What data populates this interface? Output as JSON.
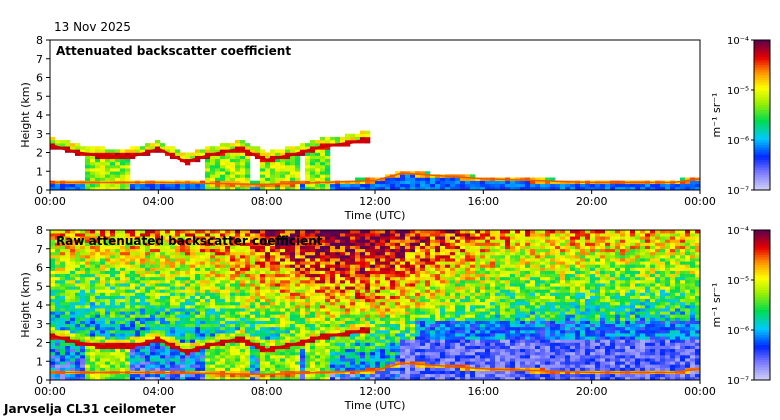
{
  "date": "13 Nov 2025",
  "station": "Jarvselja CL31 ceilometer",
  "chart_data": [
    {
      "type": "heatmap",
      "title": "Attenuated backscatter coefficient",
      "xlabel": "Time (UTC)",
      "ylabel": "Height (km)",
      "x_ticks": [
        "00:00",
        "04:00",
        "08:00",
        "12:00",
        "16:00",
        "20:00",
        "00:00"
      ],
      "xlim_hours": [
        0,
        24
      ],
      "ylim": [
        0,
        8
      ],
      "y_ticks": [
        0,
        1,
        2,
        3,
        4,
        5,
        6,
        7,
        8
      ],
      "colorbar": {
        "label": "m⁻¹ sr⁻¹",
        "scale": "log",
        "range": [
          1e-07,
          0.0001
        ],
        "ticks": [
          "10⁻⁴",
          "10⁻⁵",
          "10⁻⁶",
          "10⁻⁷"
        ]
      },
      "cloud_base_km": [
        {
          "hour": 0.0,
          "height": 2.4
        },
        {
          "hour": 1.0,
          "height": 2.0
        },
        {
          "hour": 2.0,
          "height": 1.8
        },
        {
          "hour": 3.0,
          "height": 1.8
        },
        {
          "hour": 3.6,
          "height": 2.0
        },
        {
          "hour": 4.0,
          "height": 2.2
        },
        {
          "hour": 5.0,
          "height": 1.5
        },
        {
          "hour": 6.0,
          "height": 1.9
        },
        {
          "hour": 7.0,
          "height": 2.2
        },
        {
          "hour": 8.0,
          "height": 1.6
        },
        {
          "hour": 9.0,
          "height": 1.9
        },
        {
          "hour": 10.0,
          "height": 2.3
        },
        {
          "hour": 11.0,
          "height": 2.5
        },
        {
          "hour": 11.8,
          "height": 2.7
        }
      ],
      "boundary_layer_km": [
        {
          "hour": 0.0,
          "height": 0.4
        },
        {
          "hour": 4.0,
          "height": 0.4
        },
        {
          "hour": 8.0,
          "height": 0.3
        },
        {
          "hour": 12.0,
          "height": 0.5
        },
        {
          "hour": 13.0,
          "height": 0.9
        },
        {
          "hour": 16.0,
          "height": 0.6
        },
        {
          "hour": 20.0,
          "height": 0.4
        },
        {
          "hour": 23.0,
          "height": 0.4
        },
        {
          "hour": 24.0,
          "height": 0.6
        }
      ],
      "rain_columns": [
        {
          "start_hour": 1.3,
          "end_hour": 2.9
        },
        {
          "start_hour": 5.7,
          "end_hour": 7.4
        },
        {
          "start_hour": 7.7,
          "end_hour": 9.2
        },
        {
          "start_hour": 9.5,
          "end_hour": 10.3
        }
      ]
    },
    {
      "type": "heatmap",
      "title": "Raw attenuated backscatter coefficient",
      "xlabel": "Time (UTC)",
      "ylabel": "Height (km)",
      "x_ticks": [
        "00:00",
        "04:00",
        "08:00",
        "12:00",
        "16:00",
        "20:00",
        "00:00"
      ],
      "xlim_hours": [
        0,
        24
      ],
      "ylim": [
        0,
        8
      ],
      "y_ticks": [
        0,
        1,
        2,
        3,
        4,
        5,
        6,
        7,
        8
      ],
      "colorbar": {
        "label": "m⁻¹ sr⁻¹",
        "scale": "log",
        "range": [
          1e-07,
          0.0001
        ],
        "ticks": [
          "10⁻⁴",
          "10⁻⁵",
          "10⁻⁶",
          "10⁻⁷"
        ]
      },
      "cloud_base_km": [
        {
          "hour": 0.0,
          "height": 2.4
        },
        {
          "hour": 1.0,
          "height": 2.0
        },
        {
          "hour": 2.0,
          "height": 1.8
        },
        {
          "hour": 3.0,
          "height": 1.8
        },
        {
          "hour": 3.6,
          "height": 2.0
        },
        {
          "hour": 4.0,
          "height": 2.2
        },
        {
          "hour": 5.0,
          "height": 1.5
        },
        {
          "hour": 6.0,
          "height": 1.9
        },
        {
          "hour": 7.0,
          "height": 2.2
        },
        {
          "hour": 8.0,
          "height": 1.6
        },
        {
          "hour": 9.0,
          "height": 1.9
        },
        {
          "hour": 10.0,
          "height": 2.3
        },
        {
          "hour": 11.0,
          "height": 2.5
        },
        {
          "hour": 11.8,
          "height": 2.7
        }
      ],
      "boundary_layer_km": [
        {
          "hour": 0.0,
          "height": 0.4
        },
        {
          "hour": 4.0,
          "height": 0.4
        },
        {
          "hour": 8.0,
          "height": 0.3
        },
        {
          "hour": 12.0,
          "height": 0.5
        },
        {
          "hour": 13.0,
          "height": 0.9
        },
        {
          "hour": 16.0,
          "height": 0.6
        },
        {
          "hour": 20.0,
          "height": 0.4
        },
        {
          "hour": 23.0,
          "height": 0.4
        },
        {
          "hour": 24.0,
          "height": 0.6
        }
      ],
      "rain_columns": [
        {
          "start_hour": 1.3,
          "end_hour": 2.9
        },
        {
          "start_hour": 5.7,
          "end_hour": 7.4
        },
        {
          "start_hour": 7.7,
          "end_hour": 9.2
        },
        {
          "start_hour": 9.5,
          "end_hour": 10.3
        }
      ]
    }
  ]
}
